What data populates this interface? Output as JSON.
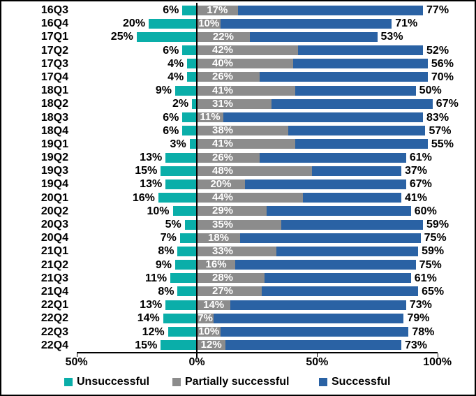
{
  "chart_data": {
    "type": "bar",
    "variant": "diverging-stacked-horizontal",
    "title": "",
    "xlabel": "",
    "ylabel": "",
    "grid": false,
    "categories": [
      "16Q3",
      "16Q4",
      "17Q1",
      "17Q2",
      "17Q3",
      "17Q4",
      "18Q1",
      "18Q2",
      "18Q3",
      "18Q4",
      "19Q1",
      "19Q2",
      "19Q3",
      "19Q4",
      "20Q1",
      "20Q2",
      "20Q3",
      "20Q4",
      "21Q1",
      "21Q2",
      "21Q3",
      "21Q4",
      "22Q1",
      "22Q2",
      "22Q3",
      "22Q4"
    ],
    "series": [
      {
        "name": "Unsuccessful",
        "color": "#0AAEA9",
        "direction": "left",
        "values": [
          6,
          20,
          25,
          6,
          4,
          4,
          9,
          2,
          6,
          6,
          3,
          13,
          15,
          13,
          16,
          10,
          5,
          7,
          8,
          9,
          11,
          8,
          13,
          14,
          12,
          15
        ]
      },
      {
        "name": "Partially successful",
        "color": "#8C8C8C",
        "direction": "right",
        "values": [
          17,
          10,
          22,
          42,
          40,
          26,
          41,
          31,
          11,
          38,
          41,
          26,
          48,
          20,
          44,
          29,
          35,
          18,
          33,
          16,
          28,
          27,
          14,
          7,
          10,
          12
        ]
      },
      {
        "name": "Successful",
        "color": "#2A62A4",
        "direction": "right",
        "values": [
          77,
          71,
          53,
          52,
          56,
          70,
          50,
          67,
          83,
          57,
          55,
          61,
          37,
          67,
          41,
          60,
          59,
          75,
          59,
          75,
          61,
          65,
          73,
          79,
          78,
          73
        ]
      }
    ],
    "value_label_suffix": "%",
    "x_axis": {
      "range": [
        -50,
        100
      ],
      "tick_values": [
        -50,
        0,
        50,
        100
      ],
      "tick_labels": [
        "50%",
        "0%",
        "50%",
        "100%"
      ]
    },
    "legend": {
      "position": "bottom",
      "entries": [
        "Unsuccessful",
        "Partially successful",
        "Successful"
      ]
    }
  }
}
